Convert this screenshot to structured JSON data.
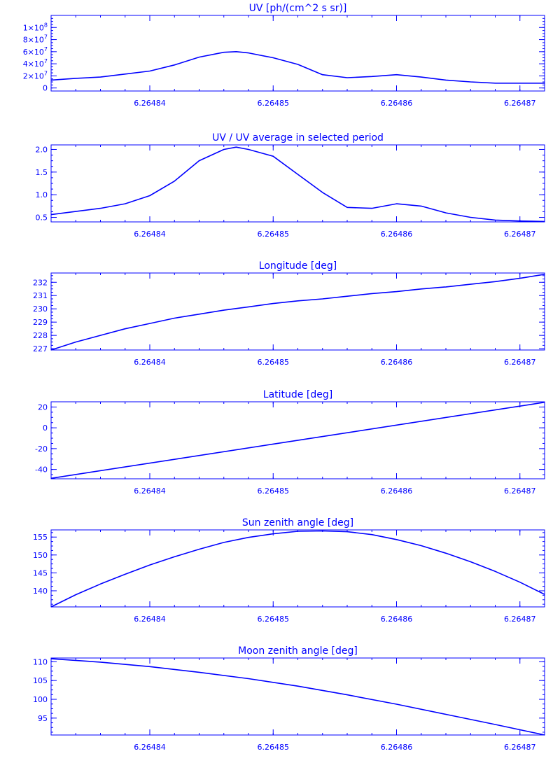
{
  "figure": {
    "color": "#0000ff",
    "background": "#ffffff"
  },
  "chart_data": [
    {
      "type": "line",
      "title": "UV [ph/(cm^2 s sr)]",
      "xlabel": "",
      "ylabel": "",
      "xlim": [
        6.264832,
        6.264872
      ],
      "ylim": [
        -5000000,
        120000000
      ],
      "x_ticks": [
        6.26484,
        6.26485,
        6.26486,
        6.26487
      ],
      "x_tick_labels": [
        "6.26484",
        "6.26485",
        "6.26486",
        "6.26487"
      ],
      "y_ticks": [
        0,
        20000000,
        40000000,
        60000000,
        80000000,
        100000000
      ],
      "y_tick_labels": [
        {
          "base": "0",
          "exp": ""
        },
        {
          "base": "2×10",
          "exp": "7"
        },
        {
          "base": "4×10",
          "exp": "7"
        },
        {
          "base": "6×10",
          "exp": "7"
        },
        {
          "base": "8×10",
          "exp": "7"
        },
        {
          "base": "1×10",
          "exp": "8"
        }
      ],
      "series": [
        {
          "x": [
            6.264832,
            6.264834,
            6.264836,
            6.264838,
            6.26484,
            6.264842,
            6.264844,
            6.264846,
            6.264847,
            6.264848,
            6.26485,
            6.264852,
            6.264854,
            6.264856,
            6.264858,
            6.26486,
            6.264862,
            6.264864,
            6.264866,
            6.264868,
            6.26487,
            6.264872
          ],
          "y": [
            13000000,
            16000000,
            18000000,
            23000000,
            28000000,
            38000000,
            51000000,
            59000000,
            60000000,
            58000000,
            50000000,
            39000000,
            22000000,
            17000000,
            19000000,
            22000000,
            18000000,
            13000000,
            10000000,
            8000000,
            8000000,
            8000000
          ]
        }
      ]
    },
    {
      "type": "line",
      "title": "UV / UV average in selected period",
      "xlabel": "",
      "ylabel": "",
      "xlim": [
        6.264832,
        6.264872
      ],
      "ylim": [
        0.4,
        2.1
      ],
      "x_ticks": [
        6.26484,
        6.26485,
        6.26486,
        6.26487
      ],
      "x_tick_labels": [
        "6.26484",
        "6.26485",
        "6.26486",
        "6.26487"
      ],
      "y_ticks": [
        0.5,
        1.0,
        1.5,
        2.0
      ],
      "y_tick_labels": [
        {
          "base": "0.5",
          "exp": ""
        },
        {
          "base": "1.0",
          "exp": ""
        },
        {
          "base": "1.5",
          "exp": ""
        },
        {
          "base": "2.0",
          "exp": ""
        }
      ],
      "series": [
        {
          "x": [
            6.264832,
            6.264834,
            6.264836,
            6.264838,
            6.26484,
            6.264842,
            6.264844,
            6.264846,
            6.264847,
            6.264848,
            6.26485,
            6.264852,
            6.264854,
            6.264856,
            6.264858,
            6.26486,
            6.264862,
            6.264864,
            6.264866,
            6.264868,
            6.26487,
            6.264872
          ],
          "y": [
            0.56,
            0.63,
            0.7,
            0.8,
            0.98,
            1.3,
            1.75,
            2.0,
            2.05,
            2.0,
            1.85,
            1.45,
            1.05,
            0.72,
            0.7,
            0.8,
            0.75,
            0.6,
            0.5,
            0.44,
            0.42,
            0.41
          ]
        }
      ]
    },
    {
      "type": "line",
      "title": "Longitude [deg]",
      "xlabel": "",
      "ylabel": "",
      "xlim": [
        6.264832,
        6.264872
      ],
      "ylim": [
        226.9,
        232.7
      ],
      "x_ticks": [
        6.26484,
        6.26485,
        6.26486,
        6.26487
      ],
      "x_tick_labels": [
        "6.26484",
        "6.26485",
        "6.26486",
        "6.26487"
      ],
      "y_ticks": [
        227,
        228,
        229,
        230,
        231,
        232
      ],
      "y_tick_labels": [
        {
          "base": "227",
          "exp": ""
        },
        {
          "base": "228",
          "exp": ""
        },
        {
          "base": "229",
          "exp": ""
        },
        {
          "base": "230",
          "exp": ""
        },
        {
          "base": "231",
          "exp": ""
        },
        {
          "base": "232",
          "exp": ""
        }
      ],
      "series": [
        {
          "x": [
            6.264832,
            6.264834,
            6.264836,
            6.264838,
            6.26484,
            6.264842,
            6.264844,
            6.264846,
            6.264848,
            6.26485,
            6.264852,
            6.264854,
            6.264856,
            6.264858,
            6.26486,
            6.264862,
            6.264864,
            6.264866,
            6.264868,
            6.26487,
            6.264872
          ],
          "y": [
            226.9,
            227.5,
            228.0,
            228.5,
            228.9,
            229.3,
            229.6,
            229.9,
            230.15,
            230.4,
            230.6,
            230.75,
            230.95,
            231.15,
            231.3,
            231.5,
            231.65,
            231.85,
            232.05,
            232.3,
            232.6
          ]
        }
      ]
    },
    {
      "type": "line",
      "title": "Latitude [deg]",
      "xlabel": "",
      "ylabel": "",
      "xlim": [
        6.264832,
        6.264872
      ],
      "ylim": [
        -49,
        25
      ],
      "x_ticks": [
        6.26484,
        6.26485,
        6.26486,
        6.26487
      ],
      "x_tick_labels": [
        "6.26484",
        "6.26485",
        "6.26486",
        "6.26487"
      ],
      "y_ticks": [
        -40,
        -20,
        0,
        20
      ],
      "y_tick_labels": [
        {
          "base": "-40",
          "exp": ""
        },
        {
          "base": "-20",
          "exp": ""
        },
        {
          "base": "0",
          "exp": ""
        },
        {
          "base": "20",
          "exp": ""
        }
      ],
      "series": [
        {
          "x": [
            6.264832,
            6.264872
          ],
          "y": [
            -48.5,
            24.5
          ]
        }
      ]
    },
    {
      "type": "line",
      "title": "Sun zenith angle [deg]",
      "xlabel": "",
      "ylabel": "",
      "xlim": [
        6.264832,
        6.264872
      ],
      "ylim": [
        135.5,
        157
      ],
      "x_ticks": [
        6.26484,
        6.26485,
        6.26486,
        6.26487
      ],
      "x_tick_labels": [
        "6.26484",
        "6.26485",
        "6.26486",
        "6.26487"
      ],
      "y_ticks": [
        140,
        145,
        150,
        155
      ],
      "y_tick_labels": [
        {
          "base": "140",
          "exp": ""
        },
        {
          "base": "145",
          "exp": ""
        },
        {
          "base": "150",
          "exp": ""
        },
        {
          "base": "155",
          "exp": ""
        }
      ],
      "series": [
        {
          "x": [
            6.264832,
            6.264834,
            6.264836,
            6.264838,
            6.26484,
            6.264842,
            6.264844,
            6.264846,
            6.264848,
            6.26485,
            6.264852,
            6.264854,
            6.264856,
            6.264858,
            6.26486,
            6.264862,
            6.264864,
            6.264866,
            6.264868,
            6.26487,
            6.264872
          ],
          "y": [
            135.5,
            138.9,
            141.9,
            144.6,
            147.2,
            149.5,
            151.6,
            153.5,
            154.9,
            155.9,
            156.6,
            156.7,
            156.5,
            155.7,
            154.3,
            152.6,
            150.5,
            148.1,
            145.4,
            142.4,
            139.0
          ]
        }
      ]
    },
    {
      "type": "line",
      "title": "Moon zenith angle [deg]",
      "xlabel": "",
      "ylabel": "",
      "xlim": [
        6.264832,
        6.264872
      ],
      "ylim": [
        90.5,
        111
      ],
      "x_ticks": [
        6.26484,
        6.26485,
        6.26486,
        6.26487
      ],
      "x_tick_labels": [
        "6.26484",
        "6.26485",
        "6.26486",
        "6.26487"
      ],
      "y_ticks": [
        95,
        100,
        105,
        110
      ],
      "y_tick_labels": [
        {
          "base": "95",
          "exp": ""
        },
        {
          "base": "100",
          "exp": ""
        },
        {
          "base": "105",
          "exp": ""
        },
        {
          "base": "110",
          "exp": ""
        }
      ],
      "series": [
        {
          "x": [
            6.264832,
            6.264836,
            6.26484,
            6.264844,
            6.264848,
            6.264852,
            6.264856,
            6.26486,
            6.264864,
            6.264868,
            6.264872
          ],
          "y": [
            110.8,
            109.9,
            108.7,
            107.2,
            105.5,
            103.5,
            101.2,
            98.7,
            96.0,
            93.3,
            90.5
          ]
        }
      ]
    }
  ]
}
